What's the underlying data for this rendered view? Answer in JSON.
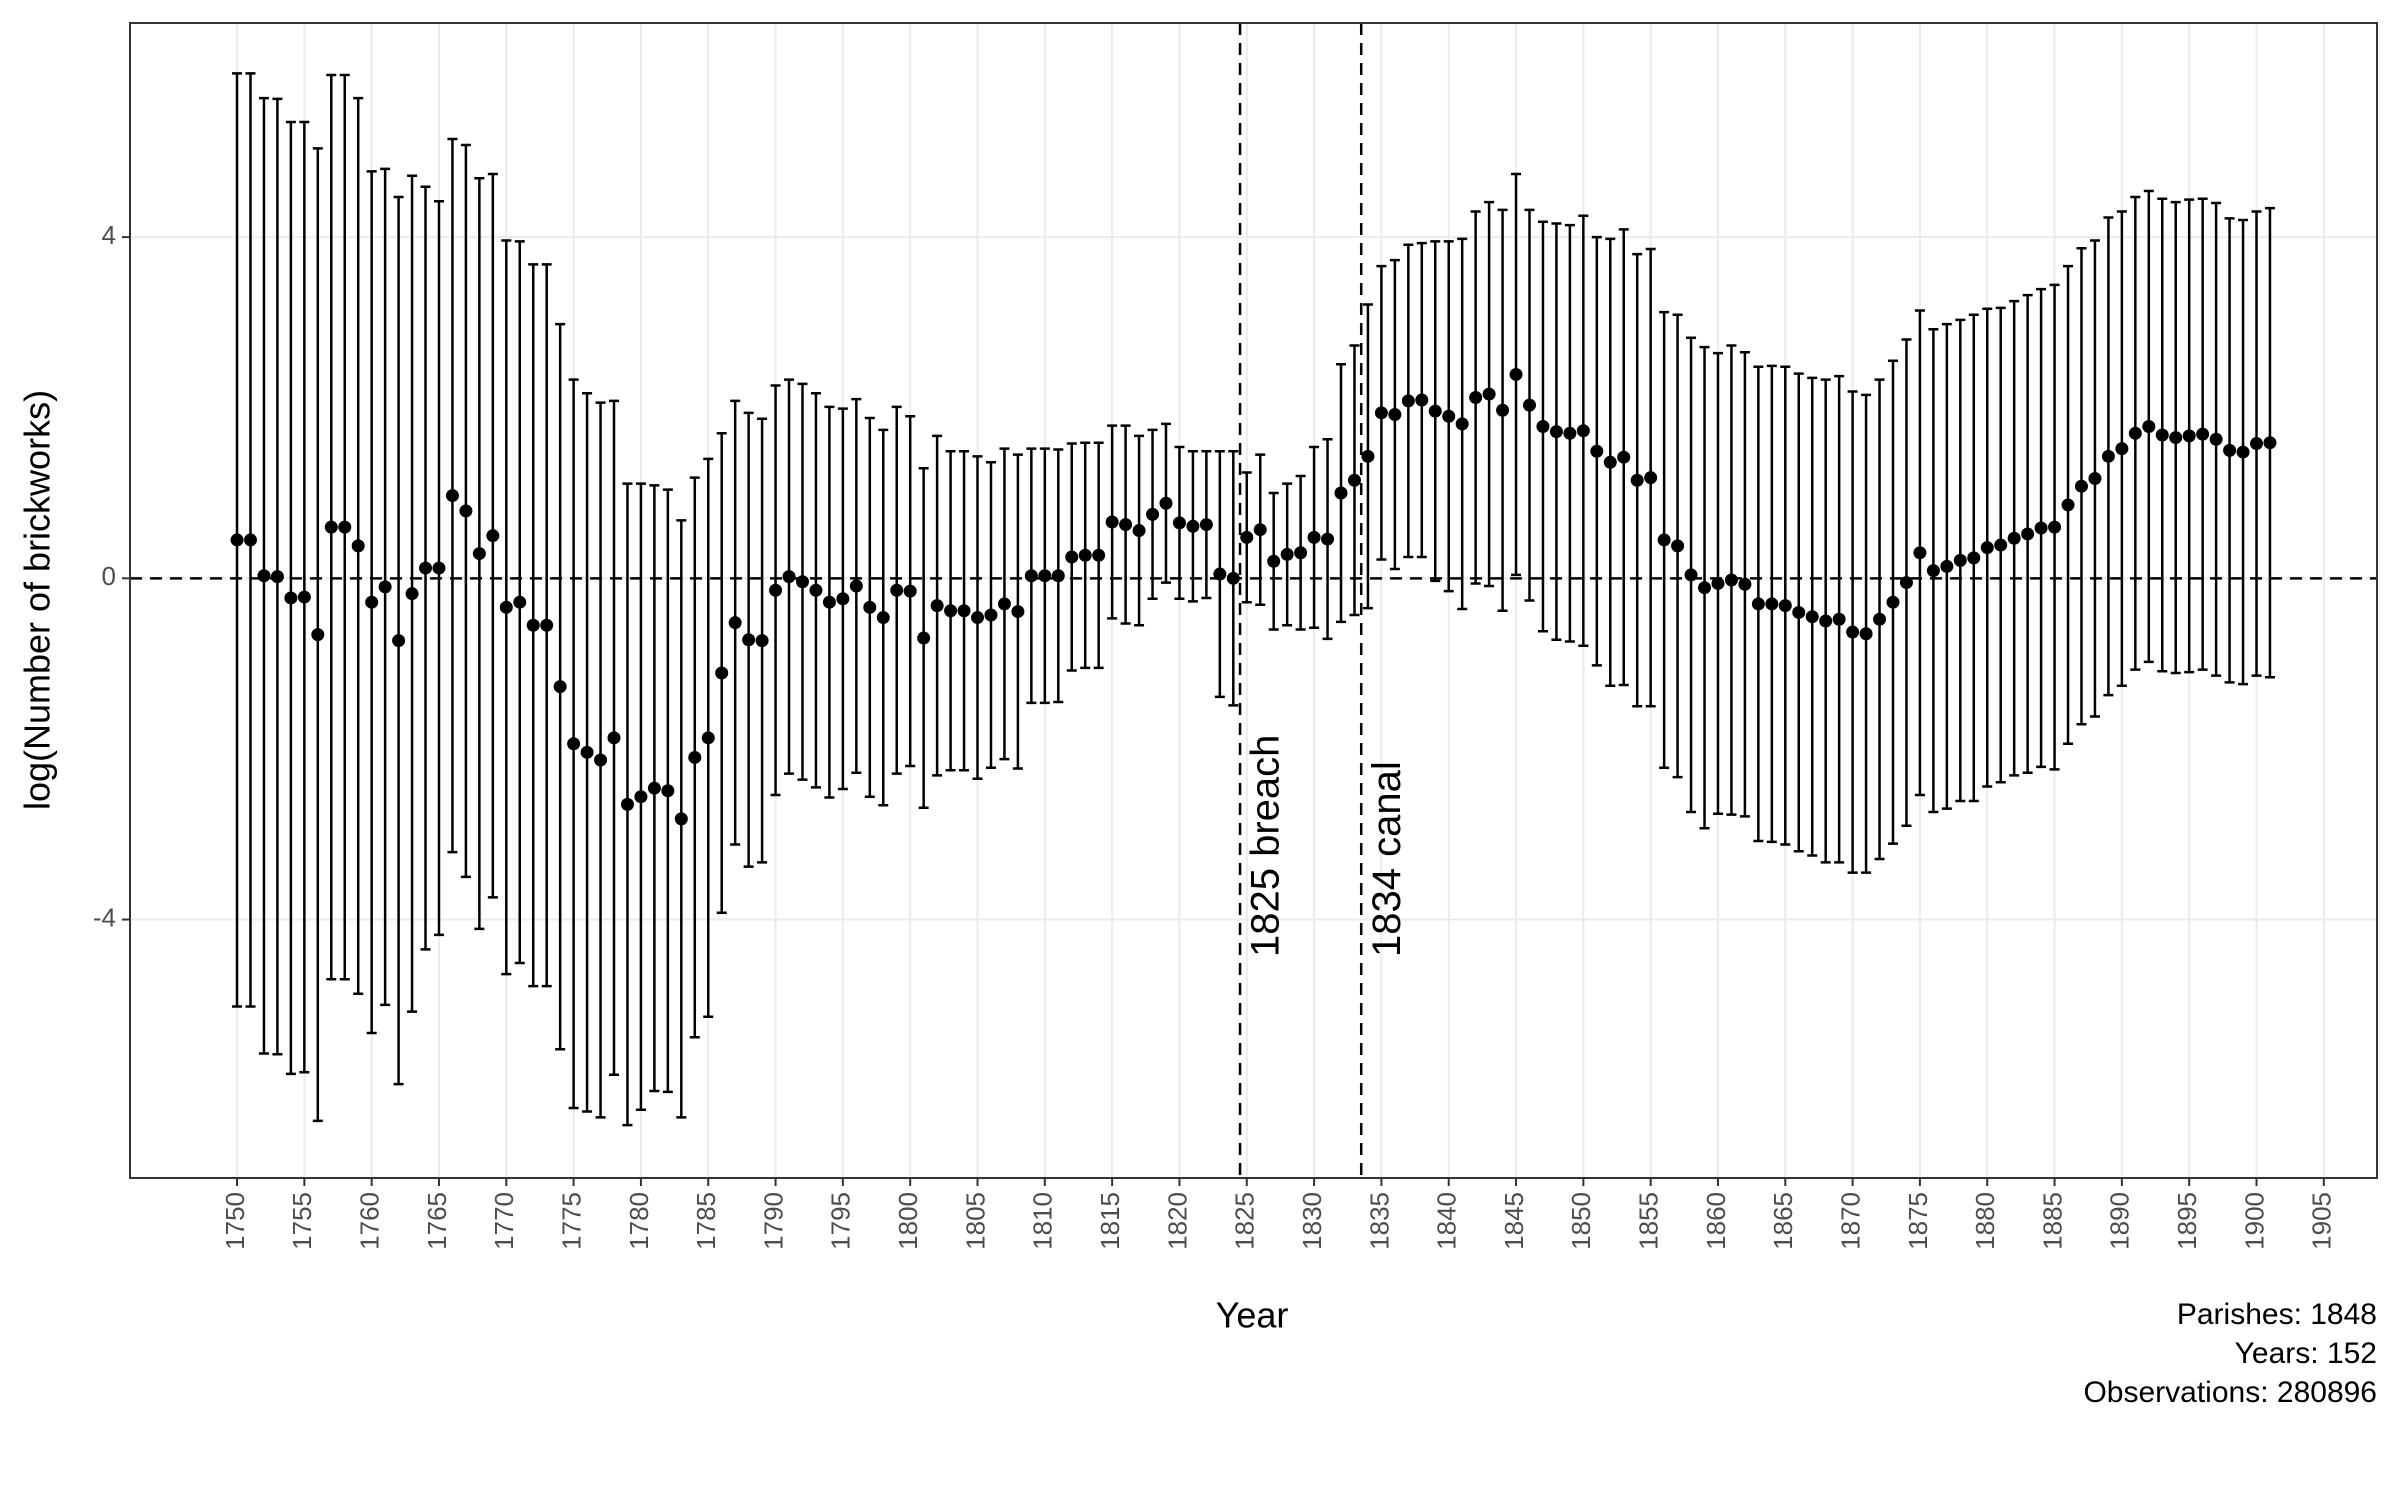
{
  "chart_data": {
    "type": "errorbar",
    "x_label": "Year",
    "y_label": "log(Number of brickworks)",
    "x": [
      1750,
      1751,
      1752,
      1753,
      1754,
      1755,
      1756,
      1757,
      1758,
      1759,
      1760,
      1761,
      1762,
      1763,
      1764,
      1765,
      1766,
      1767,
      1768,
      1769,
      1770,
      1771,
      1772,
      1773,
      1774,
      1775,
      1776,
      1777,
      1778,
      1779,
      1780,
      1781,
      1782,
      1783,
      1784,
      1785,
      1786,
      1787,
      1788,
      1789,
      1790,
      1791,
      1792,
      1793,
      1794,
      1795,
      1796,
      1797,
      1798,
      1799,
      1800,
      1801,
      1802,
      1803,
      1804,
      1805,
      1806,
      1807,
      1808,
      1809,
      1810,
      1811,
      1812,
      1813,
      1814,
      1815,
      1816,
      1817,
      1818,
      1819,
      1820,
      1821,
      1822,
      1823,
      1824,
      1825,
      1826,
      1827,
      1828,
      1829,
      1830,
      1831,
      1832,
      1833,
      1834,
      1835,
      1836,
      1837,
      1838,
      1839,
      1840,
      1841,
      1842,
      1843,
      1844,
      1845,
      1846,
      1847,
      1848,
      1849,
      1850,
      1851,
      1852,
      1853,
      1854,
      1855,
      1856,
      1857,
      1858,
      1859,
      1860,
      1861,
      1862,
      1863,
      1864,
      1865,
      1866,
      1867,
      1868,
      1869,
      1870,
      1871,
      1872,
      1873,
      1874,
      1875,
      1876,
      1877,
      1878,
      1879,
      1880,
      1881,
      1882,
      1883,
      1884,
      1885,
      1886,
      1887,
      1888,
      1889,
      1890,
      1891,
      1892,
      1893,
      1894,
      1895,
      1896,
      1897,
      1898,
      1899,
      1900,
      1901
    ],
    "values": [
      0.45,
      0.45,
      0.03,
      0.02,
      -0.23,
      -0.22,
      -0.66,
      0.6,
      0.6,
      0.38,
      -0.28,
      -0.1,
      -0.73,
      -0.18,
      0.12,
      0.12,
      0.97,
      0.79,
      0.29,
      0.5,
      -0.34,
      -0.28,
      -0.55,
      -0.55,
      -1.27,
      -1.94,
      -2.04,
      -2.13,
      -1.87,
      -2.65,
      -2.56,
      -2.46,
      -2.49,
      -2.82,
      -2.1,
      -1.87,
      -1.11,
      -0.52,
      -0.72,
      -0.73,
      -0.14,
      0.02,
      -0.04,
      -0.14,
      -0.28,
      -0.24,
      -0.09,
      -0.34,
      -0.46,
      -0.14,
      -0.15,
      -0.7,
      -0.32,
      -0.38,
      -0.38,
      -0.46,
      -0.43,
      -0.3,
      -0.39,
      0.03,
      0.03,
      0.03,
      0.25,
      0.27,
      0.27,
      0.66,
      0.63,
      0.56,
      0.75,
      0.88,
      0.65,
      0.61,
      0.63,
      0.05,
      0.0,
      0.48,
      0.57,
      0.2,
      0.28,
      0.3,
      0.48,
      0.46,
      1.0,
      1.15,
      1.43,
      1.94,
      1.92,
      2.08,
      2.09,
      1.96,
      1.9,
      1.81,
      2.12,
      2.16,
      1.97,
      2.39,
      2.03,
      1.78,
      1.72,
      1.7,
      1.73,
      1.49,
      1.36,
      1.42,
      1.15,
      1.18,
      0.45,
      0.38,
      0.04,
      -0.11,
      -0.06,
      -0.02,
      -0.07,
      -0.3,
      -0.3,
      -0.32,
      -0.4,
      -0.45,
      -0.5,
      -0.48,
      -0.63,
      -0.65,
      -0.48,
      -0.28,
      -0.05,
      0.3,
      0.09,
      0.14,
      0.21,
      0.24,
      0.36,
      0.39,
      0.47,
      0.52,
      0.59,
      0.6,
      0.86,
      1.08,
      1.17,
      1.43,
      1.52,
      1.7,
      1.78,
      1.68,
      1.65,
      1.67,
      1.69,
      1.63,
      1.5,
      1.48,
      1.58,
      1.59
    ],
    "errors": [
      5.47,
      5.47,
      5.6,
      5.6,
      5.58,
      5.57,
      5.7,
      5.3,
      5.3,
      5.25,
      5.05,
      4.9,
      5.2,
      4.9,
      4.47,
      4.3,
      4.18,
      4.29,
      4.4,
      4.24,
      4.3,
      4.23,
      4.23,
      4.23,
      4.25,
      4.27,
      4.21,
      4.19,
      3.95,
      3.76,
      3.67,
      3.55,
      3.53,
      3.5,
      3.28,
      3.27,
      2.81,
      2.6,
      2.66,
      2.6,
      2.4,
      2.31,
      2.32,
      2.31,
      2.29,
      2.23,
      2.19,
      2.22,
      2.2,
      2.15,
      2.05,
      1.99,
      1.99,
      1.87,
      1.87,
      1.89,
      1.79,
      1.82,
      1.84,
      1.49,
      1.49,
      1.48,
      1.33,
      1.32,
      1.32,
      1.13,
      1.16,
      1.11,
      0.99,
      0.93,
      0.89,
      0.88,
      0.86,
      1.44,
      1.49,
      0.76,
      0.88,
      0.8,
      0.83,
      0.9,
      1.06,
      1.17,
      1.51,
      1.58,
      1.78,
      1.72,
      1.81,
      1.83,
      1.84,
      1.99,
      2.05,
      2.17,
      2.18,
      2.25,
      2.35,
      2.35,
      2.29,
      2.4,
      2.44,
      2.44,
      2.52,
      2.51,
      2.62,
      2.67,
      2.65,
      2.68,
      2.67,
      2.71,
      2.78,
      2.82,
      2.7,
      2.75,
      2.72,
      2.78,
      2.79,
      2.8,
      2.8,
      2.8,
      2.83,
      2.85,
      2.82,
      2.8,
      2.81,
      2.83,
      2.85,
      2.84,
      2.83,
      2.84,
      2.82,
      2.85,
      2.8,
      2.78,
      2.78,
      2.8,
      2.8,
      2.84,
      2.8,
      2.79,
      2.79,
      2.8,
      2.78,
      2.77,
      2.76,
      2.77,
      2.76,
      2.77,
      2.76,
      2.77,
      2.72,
      2.72,
      2.72,
      2.75
    ],
    "color": "#000000",
    "xlim": [
      1742.05,
      1908.95
    ],
    "ylim": [
      -7.03,
      6.51
    ],
    "xticks": [
      1750,
      1755,
      1760,
      1765,
      1770,
      1775,
      1780,
      1785,
      1790,
      1795,
      1800,
      1805,
      1810,
      1815,
      1820,
      1825,
      1830,
      1835,
      1840,
      1845,
      1850,
      1855,
      1860,
      1865,
      1870,
      1875,
      1880,
      1885,
      1890,
      1895,
      1900,
      1905
    ],
    "yticks": [
      -4,
      0,
      4
    ],
    "grid": true,
    "hline": 0,
    "vlines": [
      {
        "x": 1824.5,
        "label": "1825 breach"
      },
      {
        "x": 1833.5,
        "label": "1834 canal"
      }
    ],
    "caption": [
      "Parishes: 1848",
      "Years: 152",
      "Observations: 280896"
    ]
  }
}
